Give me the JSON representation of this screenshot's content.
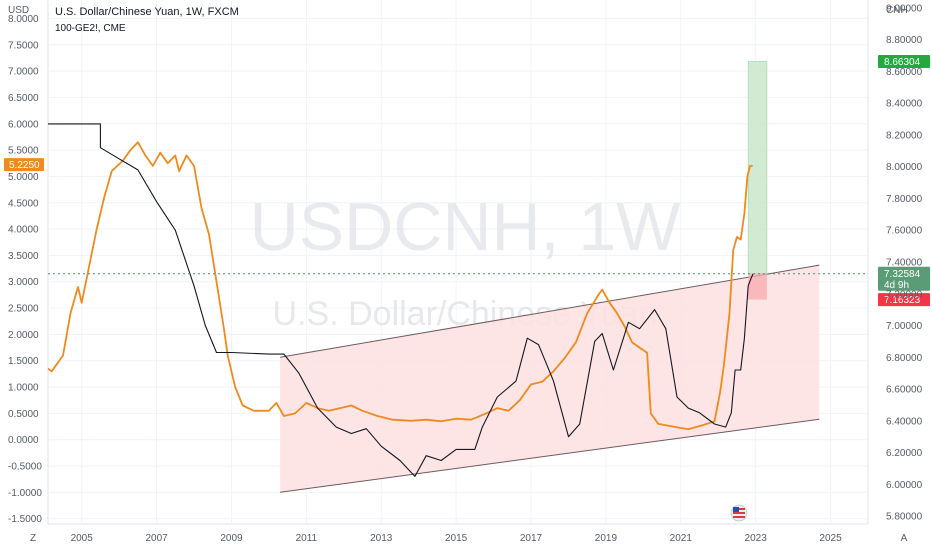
{
  "chart_data": {
    "type": "line",
    "title": "U.S. Dollar/Chinese Yuan, 1W, FXCM",
    "subtitle": "100-GE2!, CME",
    "watermark": {
      "symbol": "USDCNH, 1W",
      "name": "U.S. Dollar/Chinese Yuan"
    },
    "xlim": [
      2004.1,
      2026.0
    ],
    "x_ticks": [
      "2005",
      "2007",
      "2009",
      "2011",
      "2013",
      "2015",
      "2017",
      "2019",
      "2021",
      "2023",
      "2025"
    ],
    "left_axis": {
      "label": "USD",
      "ylim": [
        -1.6,
        8.35
      ],
      "ticks": [
        "8.0000",
        "7.5000",
        "7.0000",
        "6.5000",
        "6.0000",
        "5.5000",
        "5.0000",
        "4.5000",
        "4.0000",
        "3.5000",
        "3.0000",
        "2.5000",
        "2.0000",
        "1.5000",
        "1.0000",
        "0.5000",
        "0.0000",
        "-0.5000",
        "-1.0000",
        "-1.5000"
      ]
    },
    "right_axis": {
      "label": "CNH",
      "ylim": [
        5.75,
        9.05
      ],
      "ticks": [
        "9.00000",
        "8.80000",
        "8.60000",
        "8.40000",
        "8.20000",
        "8.00000",
        "7.80000",
        "7.60000",
        "7.40000",
        "7.20000",
        "7.00000",
        "6.80000",
        "6.60000",
        "6.40000",
        "6.20000",
        "6.00000",
        "5.80000"
      ]
    },
    "series": [
      {
        "name": "100-GE2!, CME",
        "axis": "left",
        "color": "#f08a1c",
        "points": [
          [
            2004.1,
            1.35
          ],
          [
            2004.2,
            1.3
          ],
          [
            2004.5,
            1.6
          ],
          [
            2004.7,
            2.4
          ],
          [
            2004.9,
            2.9
          ],
          [
            2005.0,
            2.6
          ],
          [
            2005.2,
            3.3
          ],
          [
            2005.4,
            4.0
          ],
          [
            2005.6,
            4.6
          ],
          [
            2005.8,
            5.1
          ],
          [
            2006.1,
            5.3
          ],
          [
            2006.3,
            5.5
          ],
          [
            2006.5,
            5.65
          ],
          [
            2006.7,
            5.4
          ],
          [
            2006.9,
            5.2
          ],
          [
            2007.1,
            5.45
          ],
          [
            2007.3,
            5.25
          ],
          [
            2007.5,
            5.4
          ],
          [
            2007.6,
            5.1
          ],
          [
            2007.8,
            5.4
          ],
          [
            2008.0,
            5.2
          ],
          [
            2008.2,
            4.4
          ],
          [
            2008.4,
            3.9
          ],
          [
            2008.6,
            3.0
          ],
          [
            2008.8,
            2.1
          ],
          [
            2008.9,
            1.6
          ],
          [
            2009.1,
            1.0
          ],
          [
            2009.3,
            0.65
          ],
          [
            2009.6,
            0.55
          ],
          [
            2010.0,
            0.55
          ],
          [
            2010.2,
            0.7
          ],
          [
            2010.4,
            0.45
          ],
          [
            2010.7,
            0.5
          ],
          [
            2011.0,
            0.7
          ],
          [
            2011.3,
            0.6
          ],
          [
            2011.6,
            0.55
          ],
          [
            2011.9,
            0.6
          ],
          [
            2012.2,
            0.65
          ],
          [
            2012.5,
            0.55
          ],
          [
            2012.9,
            0.45
          ],
          [
            2013.3,
            0.38
          ],
          [
            2013.8,
            0.36
          ],
          [
            2014.2,
            0.38
          ],
          [
            2014.6,
            0.35
          ],
          [
            2015.0,
            0.4
          ],
          [
            2015.4,
            0.38
          ],
          [
            2015.8,
            0.5
          ],
          [
            2016.1,
            0.6
          ],
          [
            2016.4,
            0.55
          ],
          [
            2016.7,
            0.75
          ],
          [
            2017.0,
            1.05
          ],
          [
            2017.3,
            1.1
          ],
          [
            2017.6,
            1.3
          ],
          [
            2017.9,
            1.55
          ],
          [
            2018.2,
            1.85
          ],
          [
            2018.5,
            2.4
          ],
          [
            2018.8,
            2.75
          ],
          [
            2018.9,
            2.85
          ],
          [
            2019.1,
            2.6
          ],
          [
            2019.3,
            2.4
          ],
          [
            2019.5,
            2.15
          ],
          [
            2019.7,
            1.85
          ],
          [
            2019.9,
            1.75
          ],
          [
            2020.1,
            1.65
          ],
          [
            2020.2,
            0.5
          ],
          [
            2020.4,
            0.3
          ],
          [
            2020.8,
            0.25
          ],
          [
            2021.2,
            0.2
          ],
          [
            2021.6,
            0.28
          ],
          [
            2021.9,
            0.35
          ],
          [
            2022.05,
            0.9
          ],
          [
            2022.15,
            1.4
          ],
          [
            2022.3,
            2.4
          ],
          [
            2022.4,
            3.6
          ],
          [
            2022.5,
            3.85
          ],
          [
            2022.6,
            3.8
          ],
          [
            2022.7,
            4.3
          ],
          [
            2022.78,
            5.0
          ],
          [
            2022.85,
            5.2
          ],
          [
            2022.92,
            5.2
          ]
        ]
      },
      {
        "name": "U.S. Dollar/Chinese Yuan",
        "axis": "right",
        "color": "#131722",
        "points": [
          [
            2004.1,
            8.27
          ],
          [
            2005.5,
            8.27
          ],
          [
            2005.5,
            8.12
          ],
          [
            2006.0,
            8.05
          ],
          [
            2006.5,
            7.98
          ],
          [
            2007.0,
            7.78
          ],
          [
            2007.5,
            7.6
          ],
          [
            2008.0,
            7.25
          ],
          [
            2008.3,
            7.0
          ],
          [
            2008.6,
            6.83
          ],
          [
            2009.0,
            6.83
          ],
          [
            2010.0,
            6.82
          ],
          [
            2010.4,
            6.82
          ],
          [
            2010.8,
            6.7
          ],
          [
            2011.3,
            6.48
          ],
          [
            2011.8,
            6.36
          ],
          [
            2012.2,
            6.32
          ],
          [
            2012.6,
            6.35
          ],
          [
            2013.0,
            6.24
          ],
          [
            2013.5,
            6.15
          ],
          [
            2013.9,
            6.05
          ],
          [
            2014.2,
            6.18
          ],
          [
            2014.6,
            6.15
          ],
          [
            2015.0,
            6.22
          ],
          [
            2015.5,
            6.22
          ],
          [
            2015.7,
            6.36
          ],
          [
            2016.1,
            6.55
          ],
          [
            2016.6,
            6.65
          ],
          [
            2016.9,
            6.92
          ],
          [
            2017.2,
            6.88
          ],
          [
            2017.6,
            6.65
          ],
          [
            2018.0,
            6.3
          ],
          [
            2018.3,
            6.38
          ],
          [
            2018.7,
            6.9
          ],
          [
            2018.9,
            6.95
          ],
          [
            2019.2,
            6.72
          ],
          [
            2019.6,
            7.02
          ],
          [
            2019.9,
            6.98
          ],
          [
            2020.3,
            7.1
          ],
          [
            2020.6,
            6.98
          ],
          [
            2020.9,
            6.55
          ],
          [
            2021.2,
            6.48
          ],
          [
            2021.5,
            6.45
          ],
          [
            2021.9,
            6.38
          ],
          [
            2022.2,
            6.36
          ],
          [
            2022.35,
            6.45
          ],
          [
            2022.45,
            6.72
          ],
          [
            2022.6,
            6.72
          ],
          [
            2022.7,
            6.92
          ],
          [
            2022.8,
            7.25
          ],
          [
            2022.88,
            7.3
          ],
          [
            2022.93,
            7.3258
          ]
        ]
      }
    ],
    "channel": {
      "upper": [
        [
          2010.3,
          6.8
        ],
        [
          2024.7,
          7.38
        ]
      ],
      "lower": [
        [
          2010.3,
          5.95
        ],
        [
          2024.7,
          6.41
        ]
      ]
    },
    "position": {
      "entry": 7.32584,
      "target": 8.66304,
      "stop": 7.16323,
      "x_range": [
        2022.8,
        2023.3
      ]
    },
    "price_labels": {
      "last_price": "7.32584",
      "countdown": "4d 9h",
      "target": "8.66304",
      "stop": "7.16323",
      "left_value": "5.2250"
    },
    "colors": {
      "orange": "#f08a1c",
      "black": "#131722",
      "green_fill": "#c8e8c9",
      "red_fill": "#fde1e1",
      "last_price_badge": "#5a9c76",
      "target_badge": "#22ab3c",
      "stop_badge": "#f23645",
      "dotted_line": "#4e8f6a"
    },
    "icons": {
      "timezone": "Z",
      "auto_scale": "A",
      "flag": "us-flag-icon"
    }
  }
}
